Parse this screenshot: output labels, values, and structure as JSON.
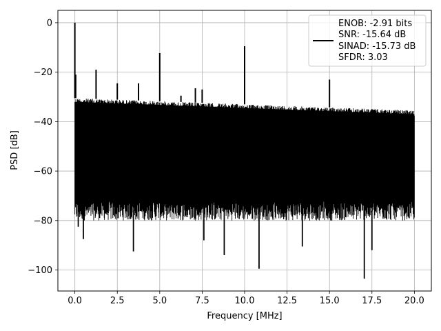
{
  "chart_data": {
    "type": "line",
    "xlabel": "Frequency [MHz]",
    "ylabel": "PSD [dB]",
    "xlim": [
      -1.0,
      21.0
    ],
    "ylim": [
      -108.5,
      5.0
    ],
    "xticks": [
      0.0,
      2.5,
      5.0,
      7.5,
      10.0,
      12.5,
      15.0,
      17.5,
      20.0
    ],
    "xtick_labels": [
      "0.0",
      "2.5",
      "5.0",
      "7.5",
      "10.0",
      "12.5",
      "15.0",
      "17.5",
      "20.0"
    ],
    "yticks": [
      0,
      -20,
      -40,
      -60,
      -80,
      -100
    ],
    "ytick_labels": [
      "0",
      "−20",
      "−40",
      "−60",
      "−80",
      "−100"
    ],
    "grid": true,
    "legend_position": "top-right",
    "legend_lines": [
      "ENOB: -2.91 bits",
      "SNR: -15.64 dB",
      "SINAD: -15.73 dB",
      "SFDR: 3.03"
    ],
    "line_color": "#000000",
    "noise_floor": {
      "x_range": [
        0.0,
        20.0
      ],
      "upper_db_start": -30.5,
      "upper_db_end": -35.5,
      "lower_db_typical": -76
    },
    "spurs": [
      {
        "x": 0.0,
        "y": 0.0
      },
      {
        "x": 0.05,
        "y": -21.0
      },
      {
        "x": 1.25,
        "y": -19.0
      },
      {
        "x": 2.5,
        "y": -24.5
      },
      {
        "x": 3.75,
        "y": -24.5
      },
      {
        "x": 5.0,
        "y": -12.3
      },
      {
        "x": 6.25,
        "y": -29.5
      },
      {
        "x": 7.1,
        "y": -26.5
      },
      {
        "x": 7.5,
        "y": -27.0
      },
      {
        "x": 10.0,
        "y": -9.5
      },
      {
        "x": 15.0,
        "y": -23.0
      }
    ],
    "dips": [
      {
        "x": 0.2,
        "y": -82.5
      },
      {
        "x": 0.5,
        "y": -87.5
      },
      {
        "x": 3.45,
        "y": -92.5
      },
      {
        "x": 7.6,
        "y": -88.0
      },
      {
        "x": 8.8,
        "y": -94.0
      },
      {
        "x": 10.85,
        "y": -99.5
      },
      {
        "x": 13.4,
        "y": -90.5
      },
      {
        "x": 17.05,
        "y": -103.5
      },
      {
        "x": 17.5,
        "y": -92.0
      }
    ]
  }
}
